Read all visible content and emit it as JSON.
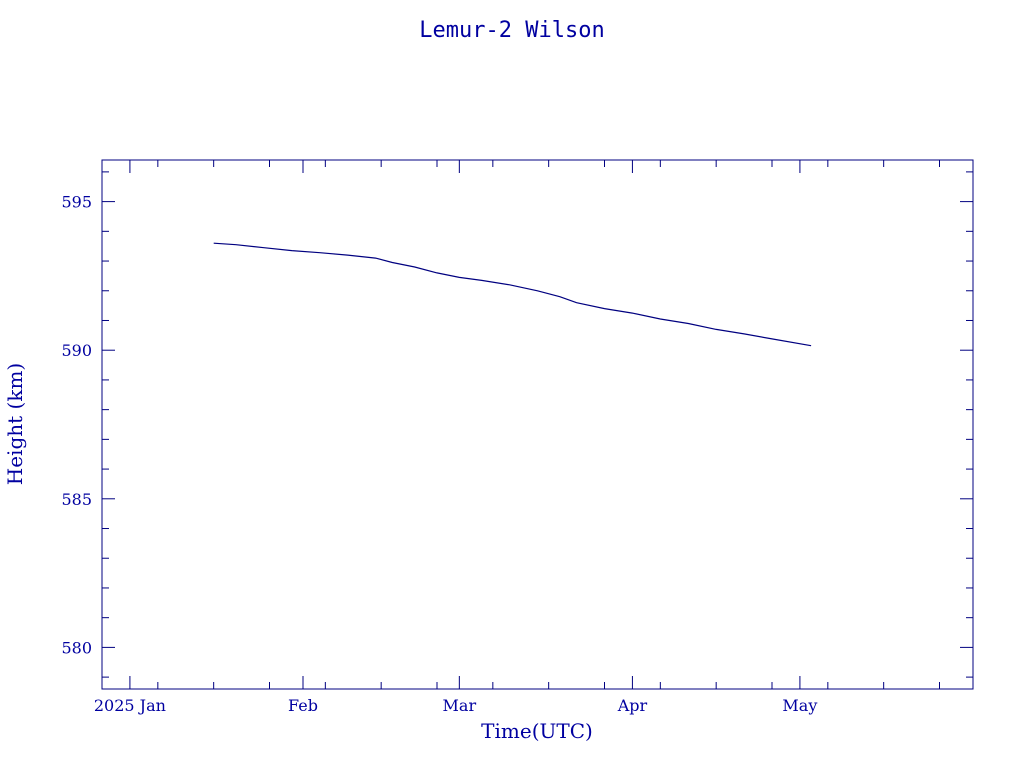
{
  "chart_data": {
    "type": "line",
    "title": "Lemur-2 Wilson",
    "xlabel": "Time(UTC)",
    "ylabel": "Height (km)",
    "x_tick_labels": [
      "2025 Jan",
      "Feb",
      "Mar",
      "Apr",
      "May"
    ],
    "x_ticks": [
      "2025-01-01",
      "2025-02-01",
      "2025-03-01",
      "2025-04-01",
      "2025-05-01"
    ],
    "y_ticks": [
      580,
      585,
      590,
      595
    ],
    "y_tick_labels": [
      "580",
      "585",
      "590",
      "595"
    ],
    "xlim": [
      "2024-12-27",
      "2025-06-01"
    ],
    "ylim": [
      578.6,
      596.4
    ],
    "grid": false,
    "series": [
      {
        "color": "#000080",
        "points": [
          [
            "2025-01-16",
            593.6
          ],
          [
            "2025-01-20",
            593.55
          ],
          [
            "2025-01-25",
            593.45
          ],
          [
            "2025-01-30",
            593.35
          ],
          [
            "2025-02-04",
            593.28
          ],
          [
            "2025-02-09",
            593.2
          ],
          [
            "2025-02-14",
            593.1
          ],
          [
            "2025-02-17",
            592.95
          ],
          [
            "2025-02-21",
            592.8
          ],
          [
            "2025-02-25",
            592.6
          ],
          [
            "2025-03-01",
            592.45
          ],
          [
            "2025-03-05",
            592.35
          ],
          [
            "2025-03-10",
            592.2
          ],
          [
            "2025-03-15",
            592.0
          ],
          [
            "2025-03-19",
            591.8
          ],
          [
            "2025-03-22",
            591.6
          ],
          [
            "2025-03-27",
            591.4
          ],
          [
            "2025-04-01",
            591.25
          ],
          [
            "2025-04-06",
            591.05
          ],
          [
            "2025-04-11",
            590.9
          ],
          [
            "2025-04-16",
            590.7
          ],
          [
            "2025-04-21",
            590.55
          ],
          [
            "2025-04-26",
            590.38
          ],
          [
            "2025-05-03",
            590.15
          ]
        ]
      }
    ]
  }
}
